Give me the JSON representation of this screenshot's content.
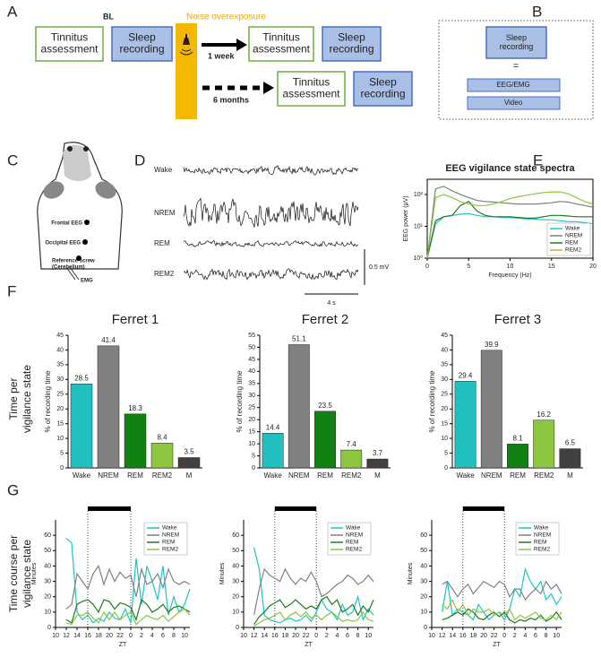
{
  "panel_labels": [
    "A",
    "B",
    "C",
    "D",
    "E",
    "F",
    "G"
  ],
  "panel_a": {
    "baseline_label": "BL",
    "baseline": [
      [
        "Tinnitus",
        "assessment"
      ],
      [
        "Sleep",
        "recording"
      ]
    ],
    "noise_label": "Noise overexposure",
    "week_label": "1 week",
    "week": [
      [
        "Tinnitus",
        "assessment"
      ],
      [
        "Sleep",
        "recording"
      ]
    ],
    "months_label": "6 months",
    "months": [
      [
        "Tinnitus",
        "assessment"
      ],
      [
        "Sleep",
        "recording"
      ]
    ]
  },
  "panel_b": {
    "top": [
      "Sleep",
      "recording"
    ],
    "equals": "=",
    "items": [
      "EEG/EMG",
      "Video"
    ]
  },
  "panel_c": {
    "electrodes": [
      "Frontal EEG",
      "Occipital EEG"
    ],
    "reference": [
      "Reference screw",
      "(Cerebellum)"
    ],
    "emg": "EMG"
  },
  "panel_d": {
    "states": [
      "Wake",
      "NREM",
      "REM",
      "REM2"
    ],
    "scale_v": "0.5 mV",
    "scale_t": "4 s"
  },
  "row_labels": {
    "f": [
      "Time per",
      "vigilance state"
    ],
    "g": [
      "Time course per",
      "vigilance state"
    ]
  },
  "chart_data": [
    {
      "type": "line",
      "title": "EEG vigilance state spectra",
      "x_label": "Frequency (Hz)",
      "y_label": "EEG power (μV)",
      "log_y": true,
      "legend": "lower right",
      "x": [
        0,
        1,
        2,
        3,
        4,
        5,
        6,
        7,
        8,
        9,
        10,
        11,
        12,
        13,
        14,
        15,
        16,
        17,
        18,
        19,
        20
      ],
      "xlim": [
        0,
        20
      ],
      "xticks": [
        0,
        5,
        10,
        15,
        20
      ],
      "ylim": [
        1,
        300
      ],
      "yticks": [
        {
          "value": 1,
          "label": "10⁰"
        },
        {
          "value": 10,
          "label": "10¹"
        },
        {
          "value": 100,
          "label": "10²"
        }
      ],
      "series": [
        {
          "name": "Wake",
          "color": "#1fc4c4",
          "values": [
            1,
            12,
            20,
            22,
            24,
            25,
            22,
            20,
            20,
            19,
            19,
            18,
            17,
            17,
            16,
            16,
            15,
            14,
            14,
            13,
            12
          ]
        },
        {
          "name": "NREM",
          "color": "#808080",
          "values": [
            1,
            150,
            180,
            130,
            100,
            80,
            65,
            60,
            58,
            55,
            52,
            50,
            50,
            50,
            52,
            55,
            60,
            58,
            50,
            45,
            40
          ]
        },
        {
          "name": "REM",
          "color": "#1f7a1f",
          "values": [
            1,
            15,
            20,
            22,
            45,
            60,
            30,
            22,
            20,
            20,
            20,
            19,
            18,
            18,
            20,
            22,
            22,
            21,
            20,
            20,
            20
          ]
        },
        {
          "name": "REM2",
          "color": "#8cc63f",
          "values": [
            1,
            80,
            100,
            80,
            60,
            50,
            45,
            45,
            50,
            60,
            75,
            85,
            95,
            105,
            115,
            120,
            120,
            105,
            80,
            60,
            50
          ]
        }
      ]
    },
    {
      "type": "bar",
      "title": "Ferret 1",
      "y_label": "% of recording time",
      "categories": [
        "Wake",
        "NREM",
        "REM",
        "REM2",
        "M"
      ],
      "values": [
        28.5,
        41.4,
        18.3,
        8.4,
        3.5
      ],
      "colors": [
        "#22bfbf",
        "#808080",
        "#138013",
        "#8cc63f",
        "#404040"
      ],
      "ylim": [
        0,
        45
      ],
      "yticks": [
        0,
        5,
        10,
        15,
        20,
        25,
        30,
        35,
        40,
        45
      ]
    },
    {
      "type": "bar",
      "title": "Ferret 2",
      "y_label": "% of recording time",
      "categories": [
        "Wake",
        "NREM",
        "REM",
        "REM2",
        "M"
      ],
      "values": [
        14.4,
        51.1,
        23.5,
        7.4,
        3.7
      ],
      "colors": [
        "#22bfbf",
        "#808080",
        "#138013",
        "#8cc63f",
        "#404040"
      ],
      "ylim": [
        0,
        55
      ],
      "yticks": [
        0,
        5,
        10,
        15,
        20,
        25,
        30,
        35,
        40,
        45,
        50,
        55
      ]
    },
    {
      "type": "bar",
      "title": "Ferret 3",
      "y_label": "% of recording time",
      "categories": [
        "Wake",
        "NREM",
        "REM",
        "REM2",
        "M"
      ],
      "values": [
        29.4,
        39.9,
        8.1,
        16.2,
        6.5
      ],
      "colors": [
        "#22bfbf",
        "#808080",
        "#138013",
        "#8cc63f",
        "#404040"
      ],
      "ylim": [
        0,
        45
      ],
      "yticks": [
        0,
        5,
        10,
        15,
        20,
        25,
        30,
        35,
        40,
        45
      ]
    },
    {
      "type": "line",
      "x_label": "ZT",
      "y_label": "Minutes",
      "legend": "upper right",
      "dark_period": [
        16,
        24
      ],
      "x": [
        12,
        13,
        14,
        15,
        16,
        17,
        18,
        19,
        20,
        21,
        22,
        23,
        24,
        25,
        26,
        27,
        28,
        29,
        30,
        31,
        32,
        33,
        34,
        35
      ],
      "xlim": [
        10,
        35
      ],
      "xticks": [
        10,
        12,
        14,
        16,
        18,
        20,
        22,
        {
          "value": 24,
          "label": "0"
        },
        {
          "value": 26,
          "label": "2"
        },
        {
          "value": 28,
          "label": "4"
        },
        {
          "value": 30,
          "label": "6"
        },
        {
          "value": 32,
          "label": "8"
        },
        {
          "value": 34,
          "label": "10"
        }
      ],
      "ylim": [
        0,
        70
      ],
      "yticks": [
        0,
        10,
        20,
        30,
        40,
        50,
        60
      ],
      "series": [
        {
          "name": "Wake",
          "color": "#1fc4c4",
          "values": [
            58,
            55,
            10,
            5,
            8,
            3,
            6,
            4,
            10,
            6,
            5,
            12,
            3,
            45,
            15,
            40,
            30,
            18,
            40,
            8,
            20,
            10,
            15,
            25
          ]
        },
        {
          "name": "NREM",
          "color": "#808080",
          "values": [
            12,
            15,
            35,
            30,
            25,
            35,
            40,
            28,
            38,
            30,
            36,
            32,
            34,
            20,
            38,
            28,
            30,
            35,
            26,
            38,
            30,
            28,
            30,
            28
          ]
        },
        {
          "name": "REM",
          "color": "#1f7a1f",
          "values": [
            5,
            3,
            15,
            17,
            18,
            15,
            10,
            18,
            17,
            12,
            16,
            15,
            13,
            5,
            18,
            15,
            10,
            12,
            15,
            10,
            13,
            14,
            12,
            10
          ]
        },
        {
          "name": "REM2",
          "color": "#8cc63f",
          "values": [
            3,
            2,
            8,
            8,
            10,
            6,
            3,
            10,
            5,
            10,
            5,
            8,
            10,
            2,
            5,
            8,
            6,
            5,
            8,
            4,
            7,
            10,
            12,
            8
          ]
        }
      ]
    },
    {
      "type": "line",
      "x_label": "ZT",
      "y_label": "Minutes",
      "legend": "upper right",
      "dark_period": [
        16,
        24
      ],
      "x": [
        12,
        13,
        14,
        15,
        16,
        17,
        18,
        19,
        20,
        21,
        22,
        23,
        24,
        25,
        26,
        27,
        28,
        29,
        30,
        31,
        32,
        33,
        34,
        35
      ],
      "xlim": [
        10,
        35
      ],
      "xticks": [
        10,
        12,
        14,
        16,
        18,
        20,
        22,
        {
          "value": 24,
          "label": "0"
        },
        {
          "value": 26,
          "label": "2"
        },
        {
          "value": 28,
          "label": "4"
        },
        {
          "value": 30,
          "label": "6"
        },
        {
          "value": 32,
          "label": "8"
        },
        {
          "value": 34,
          "label": "10"
        }
      ],
      "ylim": [
        0,
        70
      ],
      "yticks": [
        0,
        10,
        20,
        30,
        40,
        50,
        60
      ],
      "series": [
        {
          "name": "Wake",
          "color": "#1fc4c4",
          "values": [
            52,
            38,
            8,
            5,
            4,
            3,
            5,
            6,
            4,
            5,
            8,
            4,
            10,
            18,
            12,
            10,
            5,
            15,
            8,
            10,
            20,
            5,
            12,
            8
          ]
        },
        {
          "name": "NREM",
          "color": "#808080",
          "values": [
            8,
            25,
            38,
            34,
            32,
            30,
            38,
            32,
            28,
            32,
            30,
            36,
            30,
            20,
            22,
            25,
            28,
            30,
            34,
            32,
            28,
            30,
            34,
            30
          ]
        },
        {
          "name": "REM",
          "color": "#1f7a1f",
          "values": [
            2,
            7,
            10,
            14,
            16,
            18,
            13,
            15,
            18,
            15,
            12,
            14,
            12,
            18,
            20,
            15,
            18,
            10,
            12,
            15,
            8,
            14,
            10,
            18
          ]
        },
        {
          "name": "REM2",
          "color": "#8cc63f",
          "values": [
            1,
            3,
            5,
            6,
            8,
            10,
            5,
            8,
            10,
            7,
            10,
            6,
            8,
            5,
            8,
            10,
            7,
            4,
            5,
            4,
            5,
            10,
            5,
            4
          ]
        }
      ]
    },
    {
      "type": "line",
      "x_label": "ZT",
      "y_label": "Minutes",
      "legend": "upper right",
      "dark_period": [
        16,
        24
      ],
      "x": [
        12,
        13,
        14,
        15,
        16,
        17,
        18,
        19,
        20,
        21,
        22,
        23,
        24,
        25,
        26,
        27,
        28,
        29,
        30,
        31,
        32,
        33,
        34,
        35
      ],
      "xlim": [
        10,
        35
      ],
      "xticks": [
        10,
        12,
        14,
        16,
        18,
        20,
        22,
        {
          "value": 24,
          "label": "0"
        },
        {
          "value": 26,
          "label": "2"
        },
        {
          "value": 28,
          "label": "4"
        },
        {
          "value": 30,
          "label": "6"
        },
        {
          "value": 32,
          "label": "8"
        },
        {
          "value": 34,
          "label": "10"
        }
      ],
      "ylim": [
        0,
        70
      ],
      "yticks": [
        0,
        10,
        20,
        30,
        40,
        50,
        60
      ],
      "series": [
        {
          "name": "Wake",
          "color": "#1fc4c4",
          "values": [
            10,
            30,
            8,
            12,
            10,
            8,
            5,
            15,
            10,
            5,
            8,
            10,
            5,
            12,
            25,
            20,
            38,
            30,
            25,
            30,
            18,
            22,
            15,
            20
          ]
        },
        {
          "name": "NREM",
          "color": "#808080",
          "values": [
            28,
            30,
            25,
            20,
            25,
            28,
            22,
            26,
            30,
            28,
            26,
            30,
            28,
            20,
            25,
            25,
            18,
            22,
            25,
            22,
            30,
            25,
            28,
            22
          ]
        },
        {
          "name": "REM",
          "color": "#1f7a1f",
          "values": [
            5,
            6,
            8,
            10,
            8,
            12,
            10,
            6,
            5,
            8,
            10,
            7,
            10,
            5,
            3,
            5,
            4,
            6,
            5,
            8,
            4,
            6,
            10,
            5
          ]
        },
        {
          "name": "REM2",
          "color": "#8cc63f",
          "values": [
            15,
            12,
            18,
            10,
            15,
            8,
            12,
            10,
            10,
            12,
            8,
            10,
            8,
            12,
            5,
            8,
            6,
            8,
            10,
            6,
            5,
            8,
            5,
            10
          ]
        }
      ]
    }
  ]
}
